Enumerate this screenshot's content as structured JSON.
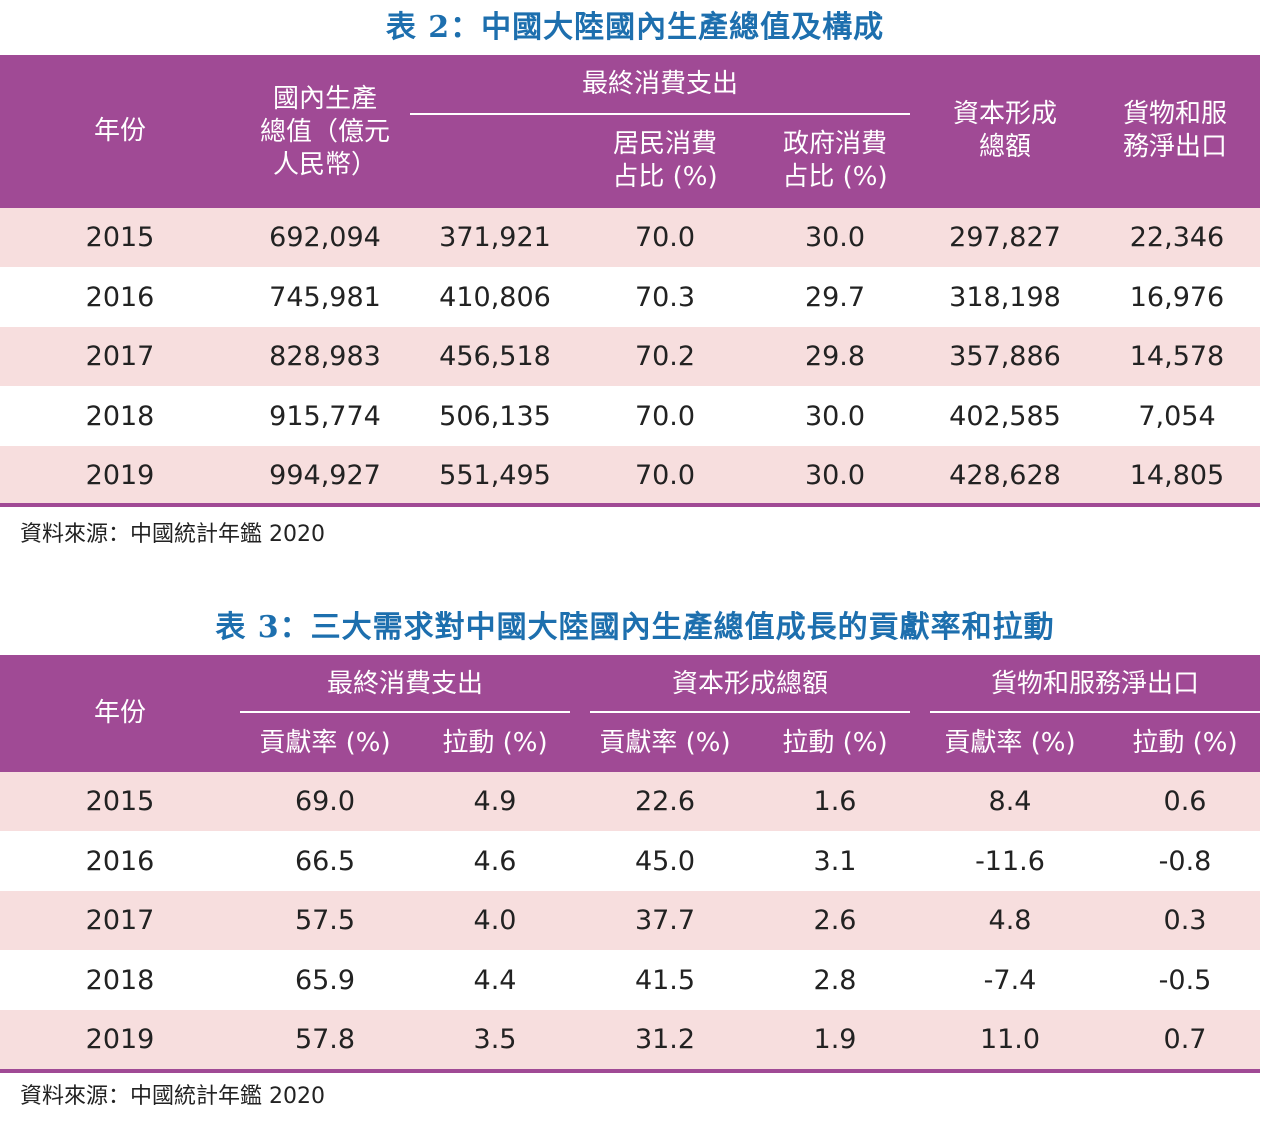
{
  "table2": {
    "title": "表 2：中國大陸國內生產總值及構成",
    "header": {
      "year": "年份",
      "gdp": [
        "國內生產",
        "總值（億元",
        "人民幣）"
      ],
      "consumption": "最終消費支出",
      "household": [
        "居民消費",
        "占比 (%)"
      ],
      "government": [
        "政府消費",
        "占比 (%)"
      ],
      "capital": [
        "資本形成",
        "總額"
      ],
      "netexport": [
        "貨物和服",
        "務淨出口"
      ]
    },
    "rows": [
      [
        "2015",
        "692,094",
        "371,921",
        "70.0",
        "30.0",
        "297,827",
        "22,346"
      ],
      [
        "2016",
        "745,981",
        "410,806",
        "70.3",
        "29.7",
        "318,198",
        "16,976"
      ],
      [
        "2017",
        "828,983",
        "456,518",
        "70.2",
        "29.8",
        "357,886",
        "14,578"
      ],
      [
        "2018",
        "915,774",
        "506,135",
        "70.0",
        "30.0",
        "402,585",
        "7,054"
      ],
      [
        "2019",
        "994,927",
        "551,495",
        "70.0",
        "30.0",
        "428,628",
        "14,805"
      ]
    ],
    "source": "資料來源：中國統計年鑑 2020"
  },
  "table3": {
    "title": "表 3：三大需求對中國大陸國內生產總值成長的貢獻率和拉動",
    "header": {
      "year": "年份",
      "groups": [
        "最終消費支出",
        "資本形成總額",
        "貨物和服務淨出口"
      ],
      "contribution": "貢獻率 (%)",
      "pull": "拉動 (%)"
    },
    "rows": [
      [
        "2015",
        "69.0",
        "4.9",
        "22.6",
        "1.6",
        "8.4",
        "0.6"
      ],
      [
        "2016",
        "66.5",
        "4.6",
        "45.0",
        "3.1",
        "-11.6",
        "-0.8"
      ],
      [
        "2017",
        "57.5",
        "4.0",
        "37.7",
        "2.6",
        "4.8",
        "0.3"
      ],
      [
        "2018",
        "65.9",
        "4.4",
        "41.5",
        "2.8",
        "-7.4",
        "-0.5"
      ],
      [
        "2019",
        "57.8",
        "3.5",
        "31.2",
        "1.9",
        "11.0",
        "0.7"
      ]
    ],
    "source": "資料來源：中國統計年鑑 2020"
  },
  "colors": {
    "title": "#1d6fae",
    "header_bg": "#a04a95",
    "row_alt": "#f7dede"
  }
}
